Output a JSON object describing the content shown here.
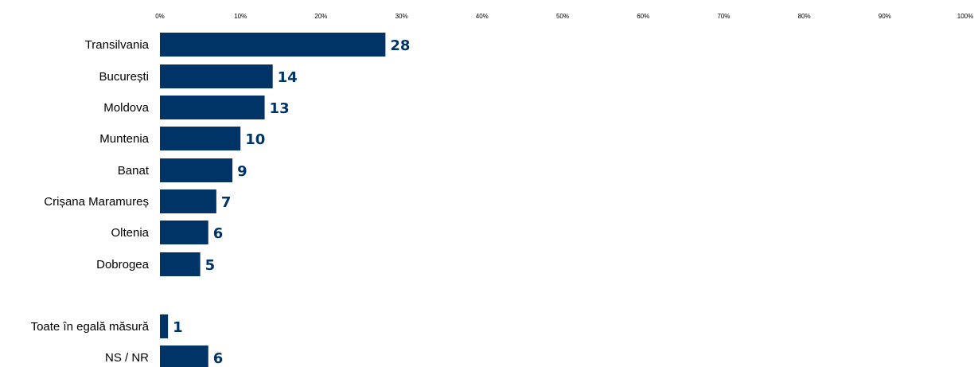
{
  "colors": {
    "bar": "#003366",
    "label": "#003366"
  },
  "chart_data": {
    "type": "bar",
    "orientation": "horizontal",
    "xlim": [
      0,
      100
    ],
    "x_ticks": [
      "0%",
      "10%",
      "20%",
      "30%",
      "40%",
      "50%",
      "60%",
      "70%",
      "80%",
      "90%",
      "100%"
    ],
    "x_tick_position": "top",
    "grid": false,
    "categories": [
      "Transilvania",
      "București",
      "Moldova",
      "Muntenia",
      "Banat",
      "Crișana Maramureș",
      "Oltenia",
      "Dobrogea",
      "Toate în egală măsură",
      "NS / NR"
    ],
    "values": [
      28,
      14,
      13,
      10,
      9,
      7,
      6,
      5,
      1,
      6
    ],
    "value_labels": [
      "28",
      "14",
      "13",
      "10",
      "9",
      "7",
      "6",
      "5",
      "1",
      "6"
    ],
    "value_unit": "%"
  }
}
